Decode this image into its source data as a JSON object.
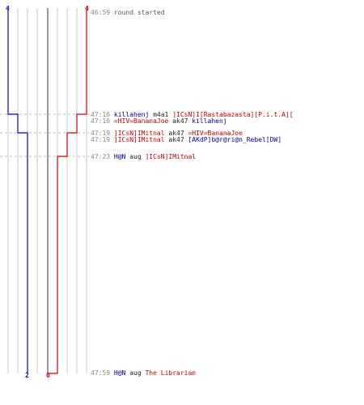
{
  "colors": {
    "blue_team": "#0000cc",
    "red_team": "#cc0000",
    "grid": "#c8c8c8",
    "center": "#777777",
    "dashed": "#bbbbbb",
    "time": "#888888"
  },
  "counts": {
    "blue_start": "4",
    "red_start": "4",
    "blue_end": "2",
    "red_end": "0"
  },
  "events": [
    {
      "time": "46:59",
      "text": "round started"
    },
    {
      "time": "47:16",
      "killer": "killahenj",
      "weapon": "m4a1",
      "victim": "]ICsN]I[Rastabazasta][P.i.t.A]["
    },
    {
      "time": "47:16",
      "killer": "=HIV=BananaJoe",
      "weapon": "ak47",
      "victim": "killahenj"
    },
    {
      "time": "47:19",
      "killer": "]ICsN]IMitnal",
      "weapon": "ak47",
      "victim": "=HIV=BananaJoe"
    },
    {
      "time": "47:19",
      "killer": "]ICsN]IMitnal",
      "weapon": "ak47",
      "victim": "[AKdP]b@r@ri@n_Rebel[DW]"
    },
    {
      "time": "47:23",
      "killer": "H@N",
      "weapon": "aug",
      "victim": "]ICsN]IMitnal"
    },
    {
      "time": "47:59",
      "killer": "H@N",
      "weapon": "aug",
      "victim": "The Librarian"
    }
  ]
}
